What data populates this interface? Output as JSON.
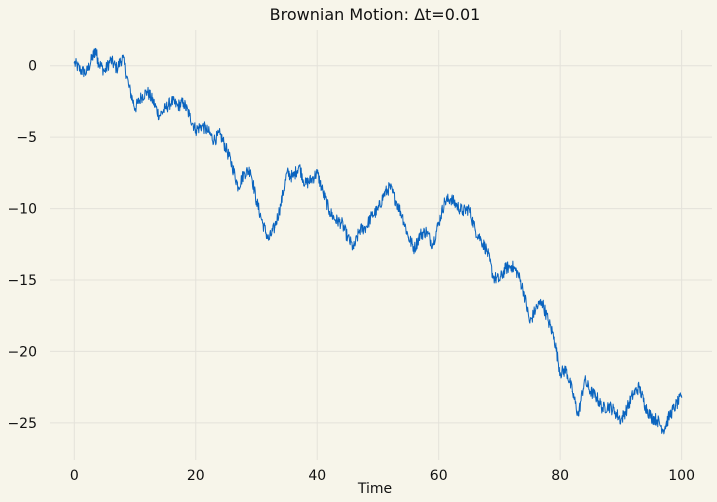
{
  "chart_data": {
    "type": "line",
    "title": "Brownian Motion: Δt=0.01",
    "xlabel": "Time",
    "ylabel": "",
    "xlim": [
      -4,
      105
    ],
    "ylim": [
      -27.6,
      2.5
    ],
    "grid": true,
    "x_ticks": [
      0,
      20,
      40,
      60,
      80,
      100
    ],
    "y_ticks": [
      0,
      -5,
      -10,
      -15,
      -20,
      -25
    ],
    "x_tick_labels": [
      "0",
      "20",
      "40",
      "60",
      "80",
      "100"
    ],
    "y_tick_labels": [
      "0",
      "−5",
      "−10",
      "−15",
      "−20",
      "−25"
    ],
    "colors": {
      "background": "#f7f5ea",
      "series": "#0a64bf",
      "grid": "#e4e2da"
    },
    "series": [
      {
        "x": [
          0,
          1,
          2,
          3,
          3.5,
          4,
          5,
          6,
          7,
          8,
          9,
          10,
          11,
          12,
          13,
          14,
          15,
          16,
          17,
          18,
          19,
          20,
          21,
          22,
          23,
          24,
          25,
          26,
          27,
          28,
          29,
          30,
          31,
          32,
          33,
          34,
          35,
          36,
          37,
          38,
          39,
          40,
          41,
          42,
          43,
          44,
          45,
          46,
          47,
          48,
          49,
          50,
          51,
          52,
          53,
          54,
          55,
          56,
          57,
          58,
          59,
          60,
          61,
          62,
          63,
          64,
          65,
          66,
          67,
          68,
          69,
          70,
          71,
          72,
          73,
          74,
          75,
          76,
          77,
          78,
          79,
          80,
          81,
          82,
          83,
          84,
          85,
          86,
          87,
          88,
          89,
          90,
          91,
          92,
          93,
          94,
          95,
          96,
          97,
          98,
          99,
          100
        ],
        "values": [
          0.2,
          -0.3,
          -0.5,
          0.6,
          1.1,
          0.2,
          -0.4,
          0.4,
          -0.2,
          0.6,
          -1.5,
          -3.0,
          -2.2,
          -1.8,
          -2.5,
          -3.5,
          -3.0,
          -2.5,
          -2.8,
          -2.6,
          -3.5,
          -4.5,
          -4.2,
          -4.6,
          -5.2,
          -4.8,
          -5.8,
          -7.0,
          -8.5,
          -7.5,
          -7.3,
          -9.5,
          -11.0,
          -12.2,
          -11.3,
          -9.8,
          -7.5,
          -7.8,
          -7.0,
          -8.3,
          -8.0,
          -7.5,
          -8.9,
          -10.2,
          -10.8,
          -11.0,
          -12.0,
          -12.8,
          -11.5,
          -11.3,
          -10.5,
          -10.1,
          -9.0,
          -8.5,
          -9.5,
          -10.5,
          -12.0,
          -12.8,
          -11.8,
          -11.6,
          -12.5,
          -11.0,
          -9.5,
          -9.3,
          -9.8,
          -10.2,
          -10.0,
          -11.5,
          -12.2,
          -13.0,
          -14.8,
          -15.0,
          -14.2,
          -14.0,
          -14.5,
          -15.8,
          -18.0,
          -17.0,
          -16.5,
          -17.8,
          -19.0,
          -21.5,
          -21.3,
          -22.8,
          -24.5,
          -22.0,
          -22.8,
          -23.2,
          -24.0,
          -23.8,
          -24.2,
          -24.8,
          -24.0,
          -23.0,
          -22.5,
          -23.8,
          -24.6,
          -24.8,
          -25.5,
          -24.5,
          -23.8,
          -23.2
        ]
      }
    ]
  }
}
